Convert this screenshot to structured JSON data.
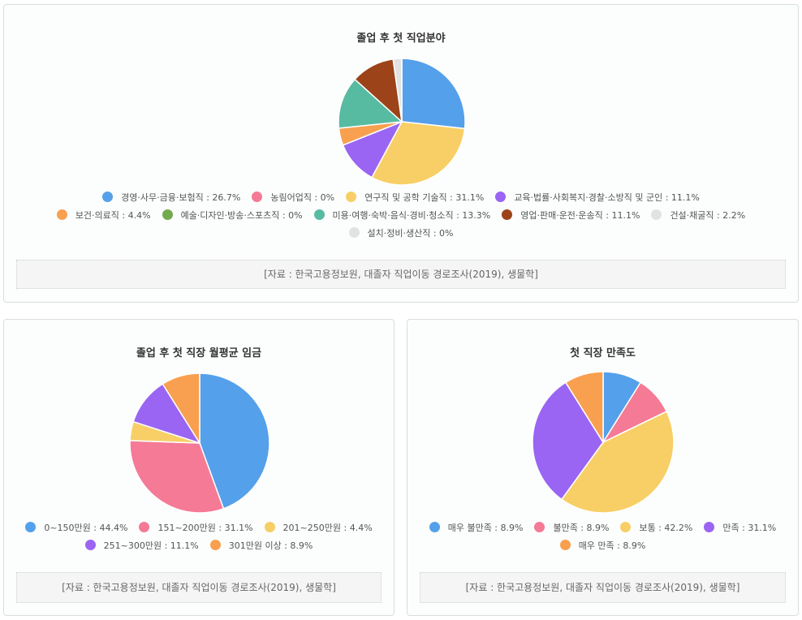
{
  "chart_data": [
    {
      "type": "pie",
      "title": "졸업 후 첫 직업분야",
      "categories": [
        "경영·사무·금융·보험직",
        "농림어업직",
        "연구직 및 공학 기술직",
        "교육·법률·사회복지·경찰·소방직 및 군인",
        "보건·의료직",
        "예술·디자인·방송·스포츠직",
        "미용·여행·숙박·음식·경비·청소직",
        "영업·판매·운전·운송직",
        "건설·채굴직",
        "설치·정비·생산직"
      ],
      "values": [
        26.7,
        0,
        31.1,
        11.1,
        4.4,
        0,
        13.3,
        11.1,
        2.2,
        0
      ],
      "colors": [
        "#55a0ea",
        "#f47a96",
        "#f8cf66",
        "#9a65f3",
        "#f8a050",
        "#72aa4e",
        "#57bba1",
        "#9c4319",
        "#e2e2e2",
        "#e2e2e2"
      ],
      "legend_labels": [
        "경영·사무·금융·보험직 : 26.7%",
        "농림어업직 : 0%",
        "연구직 및 공학 기술직 : 31.1%",
        "교육·법률·사회복지·경찰·소방직 및 군인 : 11.1%",
        "보건·의료직 : 4.4%",
        "예술·디자인·방송·스포츠직 : 0%",
        "미용·여행·숙박·음식·경비·청소직 : 13.3%",
        "영업·판매·운전·운송직 : 11.1%",
        "건설·채굴직 : 2.2%",
        "설치·정비·생산직 : 0%"
      ],
      "source": "[자료 : 한국고용정보원, 대졸자 직업이동 경로조사(2019), 생물학]"
    },
    {
      "type": "pie",
      "title": "졸업 후 첫 직장 월평균 임금",
      "categories": [
        "0~150만원",
        "151~200만원",
        "201~250만원",
        "251~300만원",
        "301만원 이상"
      ],
      "values": [
        44.4,
        31.1,
        4.4,
        11.1,
        8.9
      ],
      "colors": [
        "#55a0ea",
        "#f47a96",
        "#f8cf66",
        "#9a65f3",
        "#f8a050"
      ],
      "legend_labels": [
        "0~150만원 : 44.4%",
        "151~200만원 : 31.1%",
        "201~250만원 : 4.4%",
        "251~300만원 : 11.1%",
        "301만원 이상 : 8.9%"
      ],
      "source": "[자료 : 한국고용정보원, 대졸자 직업이동 경로조사(2019), 생물학]"
    },
    {
      "type": "pie",
      "title": "첫 직장 만족도",
      "categories": [
        "매우 불만족",
        "불만족",
        "보통",
        "만족",
        "매우 만족"
      ],
      "values": [
        8.9,
        8.9,
        42.2,
        31.1,
        8.9
      ],
      "colors": [
        "#55a0ea",
        "#f47a96",
        "#f8cf66",
        "#9a65f3",
        "#f8a050"
      ],
      "legend_labels": [
        "매우 불만족 : 8.9%",
        "불만족 : 8.9%",
        "보통 : 42.2%",
        "만족 : 31.1%",
        "매우 만족 : 8.9%"
      ],
      "source": "[자료 : 한국고용정보원, 대졸자 직업이동 경로조사(2019), 생물학]"
    }
  ]
}
